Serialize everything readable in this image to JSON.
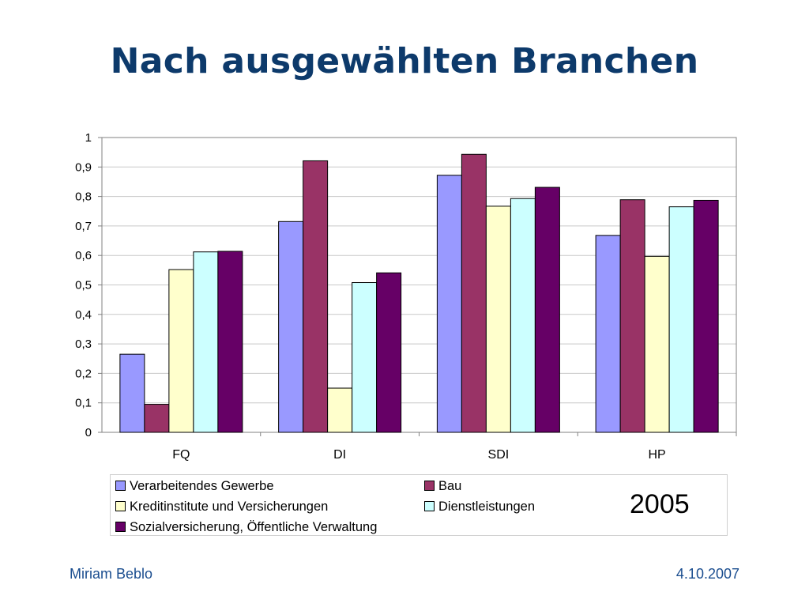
{
  "slide": {
    "title": "Nach ausgewählten Branchen",
    "footer_left": "Miriam Beblo",
    "footer_right": "4.10.2007"
  },
  "colors": {
    "title": "#0d3a6b",
    "footer": "#1a4d8f"
  },
  "chart_data": {
    "type": "bar",
    "title": "",
    "annotation": "2005",
    "xlabel": "",
    "ylabel": "",
    "categories": [
      "FQ",
      "DI",
      "SDI",
      "HP"
    ],
    "ylim": [
      0,
      1
    ],
    "yticks": [
      "0",
      "0,1",
      "0,2",
      "0,3",
      "0,4",
      "0,5",
      "0,6",
      "0,7",
      "0,8",
      "0,9",
      "1"
    ],
    "grid": true,
    "legend_position": "bottom",
    "series": [
      {
        "name": "Verarbeitendes Gewerbe",
        "color": "#9999ff",
        "values": [
          0.265,
          0.715,
          0.872,
          0.668
        ]
      },
      {
        "name": "Bau",
        "color": "#993366",
        "values": [
          0.095,
          0.921,
          0.943,
          0.789
        ]
      },
      {
        "name": "Kreditinstitute und Versicherungen",
        "color": "#ffffcc",
        "values": [
          0.552,
          0.15,
          0.767,
          0.597
        ]
      },
      {
        "name": "Dienstleistungen",
        "color": "#ccffff",
        "values": [
          0.612,
          0.508,
          0.793,
          0.765
        ]
      },
      {
        "name": "Sozialversicherung, Öffentliche Verwaltung",
        "color": "#660066",
        "values": [
          0.614,
          0.541,
          0.831,
          0.787
        ]
      }
    ]
  }
}
